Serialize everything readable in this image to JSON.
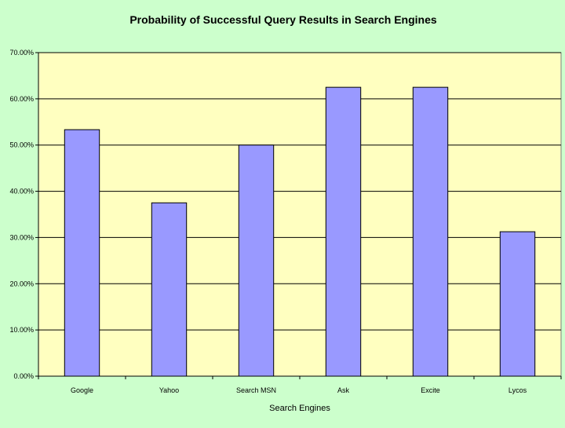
{
  "chart_data": {
    "type": "bar",
    "title": "Probability of Successful Query Results in Search Engines",
    "xlabel": "Search Engines",
    "ylabel": "",
    "categories": [
      "Google",
      "Yahoo",
      "Search MSN",
      "Ask",
      "Excite",
      "Lycos"
    ],
    "values": [
      53.33,
      37.5,
      50.0,
      62.5,
      62.5,
      31.25
    ],
    "ylim": [
      0,
      70
    ],
    "yticks": [
      0,
      10,
      20,
      30,
      40,
      50,
      60,
      70
    ],
    "ytick_labels": [
      "0.00%",
      "10.00%",
      "20.00%",
      "30.00%",
      "40.00%",
      "50.00%",
      "60.00%",
      "70.00%"
    ],
    "grid": true,
    "legend": "none",
    "colors": {
      "background": "#ccffcc",
      "plot_area": "#ffffc0",
      "bar": "#9999ff",
      "bar_edge": "#000000",
      "gridline": "#000000",
      "text": "#000000"
    }
  }
}
